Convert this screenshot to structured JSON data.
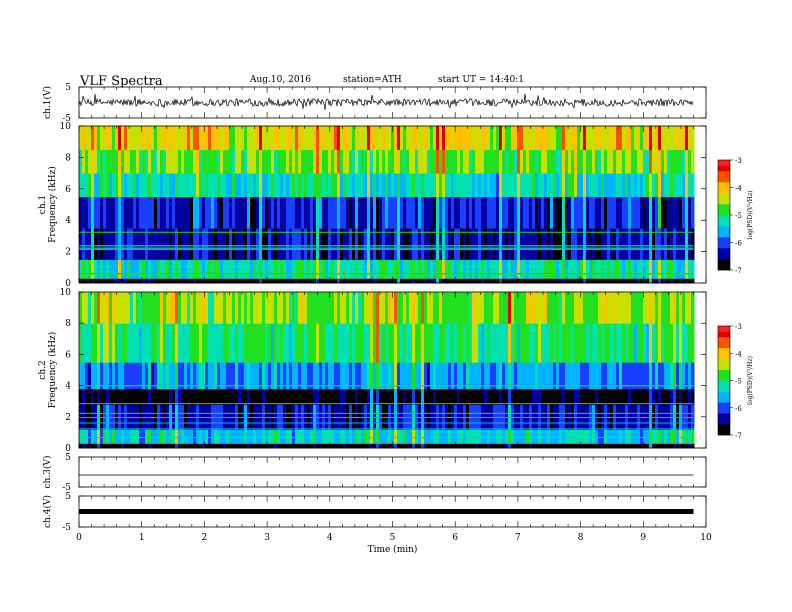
{
  "header": {
    "title": "VLF Spectra",
    "date": "Aug.10, 2016",
    "station": "station=ATH",
    "start": "start UT = 14:40:1"
  },
  "colors": {
    "spectrogram_scale": [
      "#000000",
      "#0000a0",
      "#1a40ff",
      "#00b4ff",
      "#00e0b0",
      "#20e020",
      "#c8e000",
      "#ffc000",
      "#ff5000",
      "#e00000"
    ],
    "colorbar_top": "#ff2020",
    "colorbar_bottom": "#000000",
    "trace": "#000000"
  },
  "chart_data": [
    {
      "type": "line",
      "name": "ch1-waveform",
      "ylabel": "ch.1(V)",
      "yticks": [
        "5",
        "-5"
      ],
      "ylim": [
        -5,
        5
      ],
      "approx_level": 0,
      "approx_amplitude": 2
    },
    {
      "type": "heatmap",
      "name": "ch1-spectrogram",
      "ylabel": "ch.1 Frequency (kHz)",
      "yticks": [
        "10",
        "8",
        "6",
        "4",
        "2",
        "0"
      ],
      "ylim": [
        0,
        10
      ],
      "colorbar": {
        "label": "log(PSD)(V²/Hz)",
        "ticks": [
          "-3",
          "-4",
          "-5",
          "-6",
          "-7"
        ],
        "range": [
          -7,
          -3
        ]
      },
      "bands": [
        {
          "from": 0,
          "to": 0.3,
          "level": -7
        },
        {
          "from": 0.3,
          "to": 1.5,
          "level": -5.2
        },
        {
          "from": 1.5,
          "to": 3.5,
          "level": -6.4
        },
        {
          "from": 3.5,
          "to": 5.5,
          "level": -6.2
        },
        {
          "from": 5.5,
          "to": 7,
          "level": -5.2
        },
        {
          "from": 7,
          "to": 8.5,
          "level": -4.7
        },
        {
          "from": 8.5,
          "to": 10,
          "level": -4.2
        }
      ]
    },
    {
      "type": "heatmap",
      "name": "ch2-spectrogram",
      "ylabel": "ch.2 Frequency (kHz)",
      "yticks": [
        "10",
        "8",
        "6",
        "4",
        "2",
        "0"
      ],
      "ylim": [
        0,
        10
      ],
      "colorbar": {
        "label": "log(PSD)(V²/Hz)",
        "ticks": [
          "-3",
          "-4",
          "-5",
          "-6",
          "-7"
        ],
        "range": [
          -7,
          -3
        ]
      },
      "bands": [
        {
          "from": 0,
          "to": 0.3,
          "level": -7
        },
        {
          "from": 0.3,
          "to": 1.2,
          "level": -5.4
        },
        {
          "from": 1.2,
          "to": 2.8,
          "level": -6.3
        },
        {
          "from": 2.8,
          "to": 3.8,
          "level": -6.9
        },
        {
          "from": 3.8,
          "to": 5.5,
          "level": -5.7
        },
        {
          "from": 5.5,
          "to": 8,
          "level": -5.0
        },
        {
          "from": 8,
          "to": 10,
          "level": -4.6
        }
      ]
    },
    {
      "type": "line",
      "name": "ch3-waveform",
      "ylabel": "ch.3(V)",
      "yticks": [
        "5",
        "-5"
      ],
      "ylim": [
        -5,
        5
      ],
      "approx_level": -1,
      "approx_amplitude": 0
    },
    {
      "type": "line",
      "name": "ch4-waveform",
      "ylabel": "ch.4(V)",
      "yticks": [
        "5",
        "-5"
      ],
      "ylim": [
        -5,
        5
      ],
      "approx_level": 0,
      "approx_amplitude": 0.15
    }
  ],
  "xaxis": {
    "label": "Time (min)",
    "ticks": [
      "0",
      "1",
      "2",
      "3",
      "4",
      "5",
      "6",
      "7",
      "8",
      "9",
      "10"
    ],
    "xlim": [
      0,
      10
    ],
    "data_end": 9.8
  }
}
